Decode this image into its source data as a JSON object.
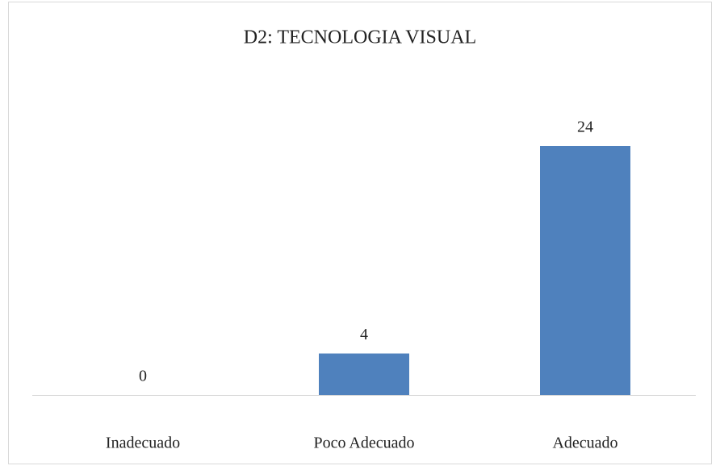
{
  "chart_data": {
    "type": "bar",
    "title": "D2: TECNOLOGIA VISUAL",
    "categories": [
      "Inadecuado",
      "Poco Adecuado",
      "Adecuado"
    ],
    "values": [
      0,
      4,
      24
    ],
    "color": "#4f81bd"
  }
}
